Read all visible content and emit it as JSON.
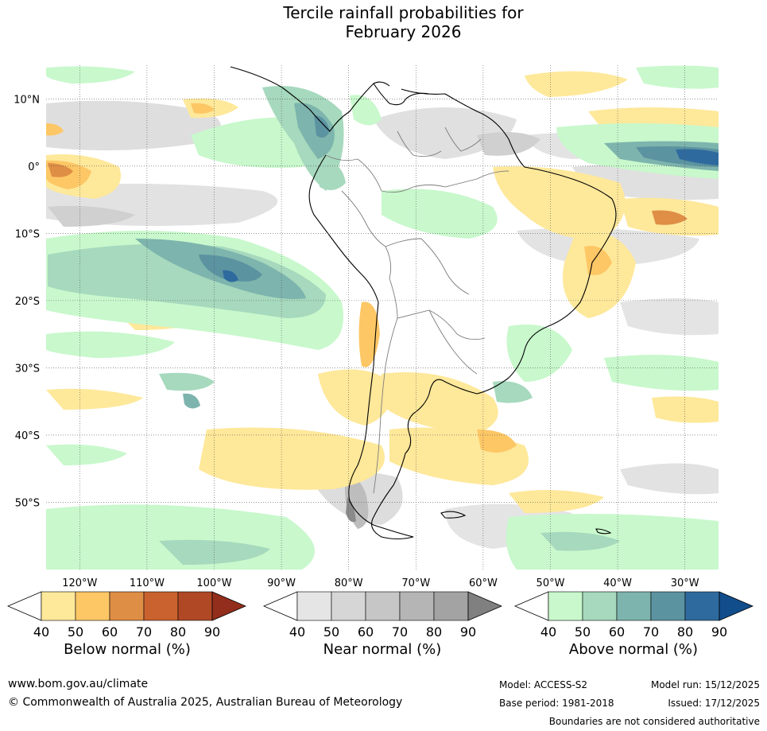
{
  "title": {
    "line1": "Tercile rainfall probabilities for",
    "line2": "February 2026"
  },
  "map": {
    "lat_labels": [
      "10°N",
      "0°",
      "10°S",
      "20°S",
      "30°S",
      "40°S",
      "50°S"
    ],
    "lon_labels": [
      "120°W",
      "110°W",
      "100°W",
      "90°W",
      "80°W",
      "70°W",
      "60°W",
      "50°W",
      "40°W",
      "30°W"
    ],
    "lat_values": [
      10,
      0,
      -10,
      -20,
      -30,
      -40,
      -50
    ],
    "lon_values": [
      -120,
      -110,
      -100,
      -90,
      -80,
      -70,
      -60,
      -50,
      -40,
      -30
    ]
  },
  "legends": {
    "below": {
      "label": "Below normal (%)",
      "ticks": [
        "40",
        "50",
        "60",
        "70",
        "80",
        "90"
      ],
      "colors": [
        "#ffffff",
        "#fee89a",
        "#fdc766",
        "#df8e45",
        "#c9622e",
        "#b04826",
        "#932e1c"
      ]
    },
    "near": {
      "label": "Near normal (%)",
      "ticks": [
        "40",
        "50",
        "60",
        "70",
        "80",
        "90"
      ],
      "colors": [
        "#ffffff",
        "#e5e5e5",
        "#d6d6d6",
        "#c6c6c6",
        "#b5b5b5",
        "#a3a3a3",
        "#808080"
      ]
    },
    "above": {
      "label": "Above normal (%)",
      "ticks": [
        "40",
        "50",
        "60",
        "70",
        "80",
        "90"
      ],
      "colors": [
        "#ffffff",
        "#c8f8cc",
        "#a6d9bd",
        "#7db4ad",
        "#5b93a1",
        "#2f6a9e",
        "#124d8b"
      ]
    }
  },
  "footer": {
    "website": "www.bom.gov.au/climate",
    "copyright": "© Commonwealth of Australia 2025, Australian Bureau of Meteorology",
    "model": "Model: ACCESS-S2",
    "base_period": "Base period: 1981-2018",
    "model_run": "Model run: 15/12/2025",
    "issued": "Issued: 17/12/2025",
    "disclaimer": "Boundaries are not considered authoritative"
  }
}
